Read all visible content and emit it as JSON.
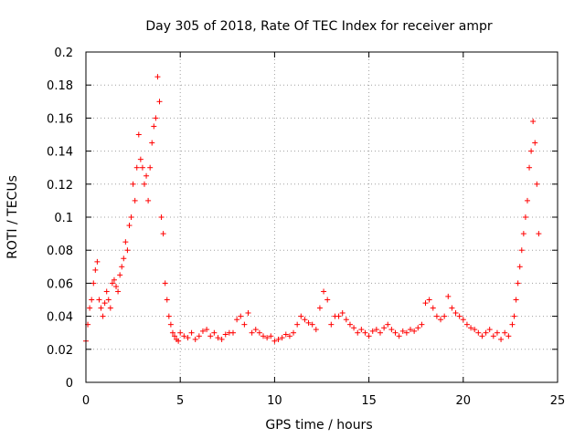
{
  "chart_data": {
    "type": "scatter",
    "title": "Day 305 of 2018, Rate Of TEC Index for receiver ampr",
    "xlabel": "GPS time / hours",
    "ylabel": "ROTI / TECUs",
    "xlim": [
      0,
      25
    ],
    "ylim": [
      0,
      0.2
    ],
    "xticks": [
      "0",
      "5",
      "10",
      "15",
      "20",
      "25"
    ],
    "yticks": [
      "0",
      "0.02",
      "0.04",
      "0.06",
      "0.08",
      "0.1",
      "0.12",
      "0.14",
      "0.16",
      "0.18",
      "0.2"
    ],
    "grid": true,
    "marker": "plus",
    "color": "#ff0000",
    "series": [
      {
        "name": "",
        "x": [
          0.0,
          0.1,
          0.2,
          0.3,
          0.4,
          0.5,
          0.6,
          0.7,
          0.8,
          0.9,
          1.0,
          1.1,
          1.2,
          1.3,
          1.4,
          1.5,
          1.6,
          1.7,
          1.8,
          1.9,
          2.0,
          2.1,
          2.2,
          2.3,
          2.4,
          2.5,
          2.6,
          2.7,
          2.8,
          2.9,
          3.0,
          3.1,
          3.2,
          3.3,
          3.4,
          3.5,
          3.6,
          3.7,
          3.8,
          3.9,
          4.0,
          4.1,
          4.2,
          4.3,
          4.4,
          4.5,
          4.6,
          4.7,
          4.8,
          4.9,
          5.0,
          5.2,
          5.4,
          5.6,
          5.8,
          6.0,
          6.2,
          6.4,
          6.6,
          6.8,
          7.0,
          7.2,
          7.4,
          7.6,
          7.8,
          8.0,
          8.2,
          8.4,
          8.6,
          8.8,
          9.0,
          9.2,
          9.4,
          9.6,
          9.8,
          10.0,
          10.2,
          10.4,
          10.6,
          10.8,
          11.0,
          11.2,
          11.4,
          11.6,
          11.8,
          12.0,
          12.2,
          12.4,
          12.6,
          12.8,
          13.0,
          13.2,
          13.4,
          13.6,
          13.8,
          14.0,
          14.2,
          14.4,
          14.6,
          14.8,
          15.0,
          15.2,
          15.4,
          15.6,
          15.8,
          16.0,
          16.2,
          16.4,
          16.6,
          16.8,
          17.0,
          17.2,
          17.4,
          17.6,
          17.8,
          18.0,
          18.2,
          18.4,
          18.6,
          18.8,
          19.0,
          19.2,
          19.4,
          19.6,
          19.8,
          20.0,
          20.2,
          20.4,
          20.6,
          20.8,
          21.0,
          21.2,
          21.4,
          21.6,
          21.8,
          22.0,
          22.2,
          22.4,
          22.6,
          22.7,
          22.8,
          22.9,
          23.0,
          23.1,
          23.2,
          23.3,
          23.4,
          23.5,
          23.6,
          23.7,
          23.8,
          23.9,
          24.0
        ],
        "y": [
          0.025,
          0.035,
          0.045,
          0.05,
          0.06,
          0.068,
          0.073,
          0.05,
          0.045,
          0.04,
          0.048,
          0.055,
          0.05,
          0.045,
          0.06,
          0.062,
          0.058,
          0.055,
          0.065,
          0.07,
          0.075,
          0.085,
          0.08,
          0.095,
          0.1,
          0.12,
          0.11,
          0.13,
          0.15,
          0.135,
          0.13,
          0.12,
          0.125,
          0.11,
          0.13,
          0.145,
          0.155,
          0.16,
          0.185,
          0.17,
          0.1,
          0.09,
          0.06,
          0.05,
          0.04,
          0.035,
          0.03,
          0.028,
          0.026,
          0.025,
          0.03,
          0.028,
          0.027,
          0.03,
          0.026,
          0.028,
          0.031,
          0.032,
          0.028,
          0.03,
          0.027,
          0.026,
          0.029,
          0.03,
          0.03,
          0.038,
          0.04,
          0.035,
          0.042,
          0.03,
          0.032,
          0.03,
          0.028,
          0.027,
          0.028,
          0.025,
          0.026,
          0.027,
          0.029,
          0.028,
          0.03,
          0.035,
          0.04,
          0.038,
          0.036,
          0.035,
          0.032,
          0.045,
          0.055,
          0.05,
          0.035,
          0.04,
          0.04,
          0.042,
          0.038,
          0.035,
          0.033,
          0.03,
          0.032,
          0.03,
          0.028,
          0.031,
          0.032,
          0.03,
          0.033,
          0.035,
          0.032,
          0.03,
          0.028,
          0.031,
          0.03,
          0.032,
          0.031,
          0.033,
          0.035,
          0.048,
          0.05,
          0.045,
          0.04,
          0.038,
          0.04,
          0.052,
          0.045,
          0.042,
          0.04,
          0.038,
          0.035,
          0.033,
          0.032,
          0.03,
          0.028,
          0.03,
          0.032,
          0.028,
          0.03,
          0.026,
          0.03,
          0.028,
          0.035,
          0.04,
          0.05,
          0.06,
          0.07,
          0.08,
          0.09,
          0.1,
          0.11,
          0.13,
          0.14,
          0.158,
          0.145,
          0.12,
          0.09
        ]
      }
    ]
  }
}
